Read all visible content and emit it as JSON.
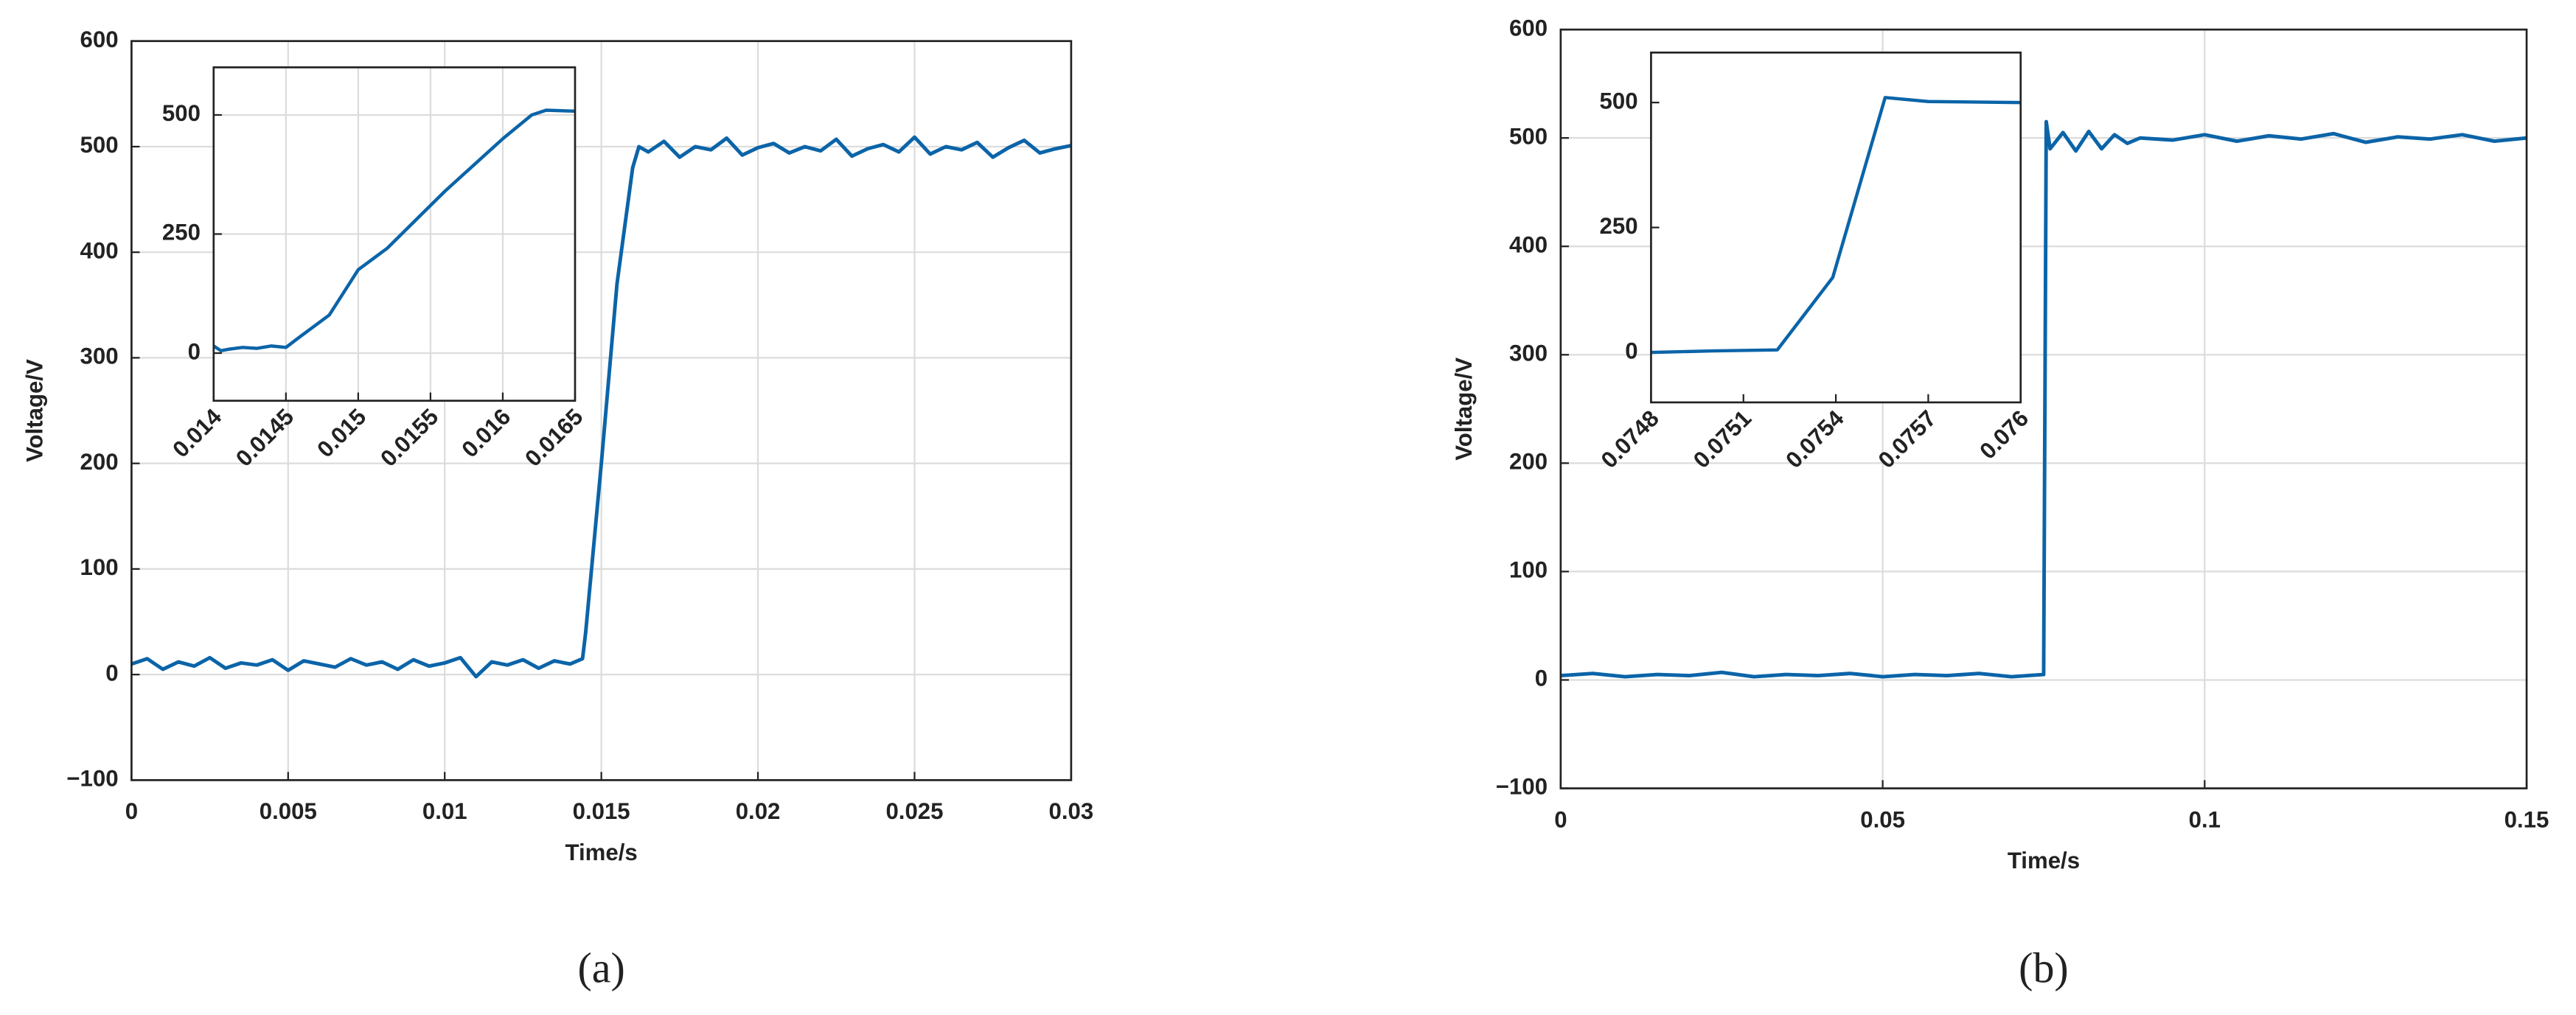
{
  "chart_data": [
    {
      "type": "line",
      "label": "(a)",
      "xlabel": "Time/s",
      "ylabel": "Voltage/V",
      "xlim": [
        0,
        0.03
      ],
      "ylim": [
        -100,
        600
      ],
      "xticks": [
        0,
        0.005,
        0.01,
        0.015,
        0.02,
        0.025,
        0.03
      ],
      "yticks": [
        {
          "value": -100,
          "label": "−100"
        },
        0,
        100,
        200,
        300,
        400,
        500,
        600
      ],
      "grid": true,
      "color": "#0b64a8",
      "x": [
        0,
        0.0005,
        0.001,
        0.0015,
        0.002,
        0.0025,
        0.003,
        0.0035,
        0.004,
        0.0045,
        0.005,
        0.0055,
        0.006,
        0.0065,
        0.007,
        0.0075,
        0.008,
        0.0085,
        0.009,
        0.0095,
        0.01,
        0.0105,
        0.011,
        0.0115,
        0.012,
        0.0125,
        0.013,
        0.0135,
        0.014,
        0.0144,
        0.0145,
        0.015,
        0.0155,
        0.016,
        0.0162,
        0.0165,
        0.017,
        0.0175,
        0.018,
        0.0185,
        0.019,
        0.0195,
        0.02,
        0.0205,
        0.021,
        0.0215,
        0.022,
        0.0225,
        0.023,
        0.0235,
        0.024,
        0.0245,
        0.025,
        0.0255,
        0.026,
        0.0265,
        0.027,
        0.0275,
        0.028,
        0.0285,
        0.029,
        0.0295,
        0.03
      ],
      "values": [
        10,
        15,
        5,
        12,
        8,
        16,
        6,
        11,
        9,
        14,
        4,
        13,
        10,
        7,
        15,
        9,
        12,
        5,
        14,
        8,
        11,
        16,
        -2,
        12,
        9,
        14,
        6,
        13,
        10,
        15,
        40,
        200,
        370,
        480,
        500,
        495,
        505,
        490,
        500,
        497,
        508,
        492,
        499,
        503,
        494,
        500,
        496,
        507,
        491,
        498,
        502,
        495,
        509,
        493,
        500,
        497,
        504,
        490,
        499,
        506,
        494,
        498,
        501
      ],
      "inset": {
        "type": "line",
        "xlim": [
          0.014,
          0.0165
        ],
        "ylim": [
          -100,
          600
        ],
        "xticks": [
          0.014,
          0.0145,
          0.015,
          0.0155,
          0.016,
          0.0165
        ],
        "yticks": [
          0,
          250,
          500
        ],
        "grid": true,
        "color": "#0b64a8",
        "x": [
          0.014,
          0.01405,
          0.0141,
          0.0142,
          0.0143,
          0.0144,
          0.0145,
          0.0146,
          0.0148,
          0.015,
          0.0152,
          0.0154,
          0.0156,
          0.0158,
          0.016,
          0.0162,
          0.0163,
          0.0165
        ],
        "values": [
          15,
          5,
          8,
          12,
          10,
          15,
          12,
          35,
          80,
          175,
          220,
          280,
          340,
          395,
          450,
          500,
          510,
          508
        ]
      }
    },
    {
      "type": "line",
      "label": "(b)",
      "xlabel": "Time/s",
      "ylabel": "Voltage/V",
      "xlim": [
        0,
        0.15
      ],
      "ylim": [
        -100,
        600
      ],
      "xticks": [
        0,
        0.05,
        0.1,
        0.15
      ],
      "yticks": [
        {
          "value": -100,
          "label": "−100"
        },
        0,
        100,
        200,
        300,
        400,
        500,
        600
      ],
      "grid": true,
      "color": "#0b64a8",
      "x": [
        0,
        0.005,
        0.01,
        0.015,
        0.02,
        0.025,
        0.03,
        0.035,
        0.04,
        0.045,
        0.05,
        0.055,
        0.06,
        0.065,
        0.07,
        0.075,
        0.0754,
        0.076,
        0.078,
        0.08,
        0.082,
        0.084,
        0.086,
        0.088,
        0.09,
        0.095,
        0.1,
        0.105,
        0.11,
        0.115,
        0.12,
        0.125,
        0.13,
        0.135,
        0.14,
        0.145,
        0.15
      ],
      "values": [
        4,
        6,
        3,
        5,
        4,
        7,
        3,
        5,
        4,
        6,
        3,
        5,
        4,
        6,
        3,
        5,
        515,
        490,
        505,
        488,
        506,
        490,
        503,
        495,
        500,
        498,
        503,
        497,
        502,
        499,
        504,
        496,
        501,
        499,
        503,
        497,
        500
      ],
      "inset": {
        "type": "line",
        "xlim": [
          0.0748,
          0.076
        ],
        "ylim": [
          -100,
          600
        ],
        "xticks": [
          0.0748,
          0.0751,
          0.0754,
          0.0757,
          0.076
        ],
        "yticks": [
          0,
          250,
          500
        ],
        "grid": false,
        "color": "#0b64a8",
        "x": [
          0.0748,
          0.075,
          0.07521,
          0.07539,
          0.07556,
          0.0757,
          0.076
        ],
        "values": [
          0,
          3,
          5,
          150,
          510,
          502,
          500
        ]
      }
    }
  ]
}
